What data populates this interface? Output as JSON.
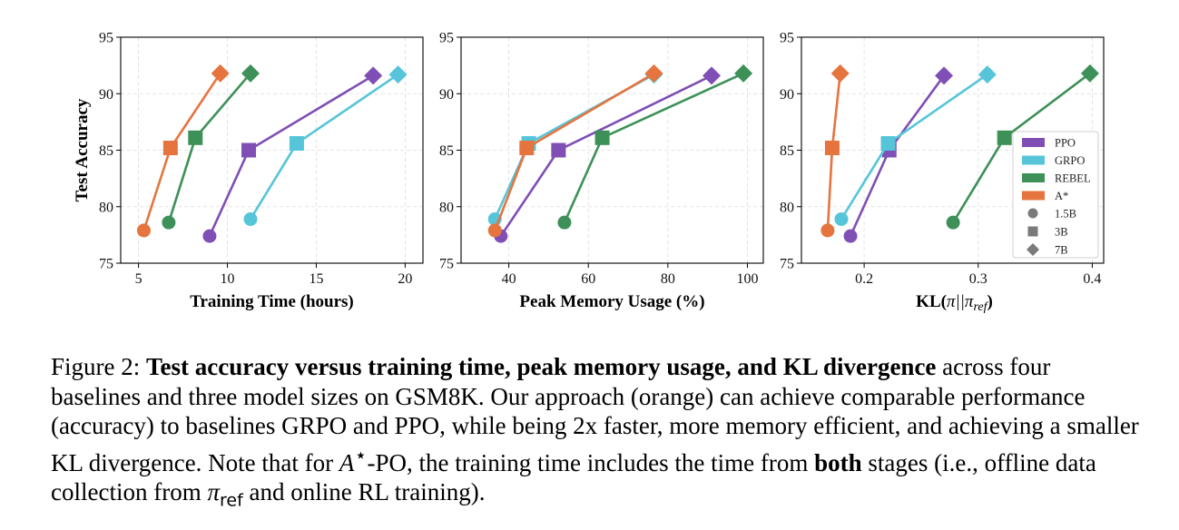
{
  "chart_data": [
    {
      "type": "line",
      "xlabel": "Training Time (hours)",
      "ylabel": "Test Accuracy",
      "xlim": [
        4,
        21
      ],
      "ylim": [
        75,
        95
      ],
      "xticks": [
        "5",
        "10",
        "15",
        "20"
      ],
      "xtick_values": [
        5,
        10,
        15,
        20
      ],
      "yticks": [
        "75",
        "80",
        "85",
        "90",
        "95"
      ],
      "ytick_values": [
        75,
        80,
        85,
        90,
        95
      ],
      "grid": true,
      "series": [
        {
          "name": "PPO",
          "color": "#7f4fb5",
          "x": [
            9.0,
            11.2,
            18.2
          ],
          "y": [
            77.4,
            85.0,
            91.6
          ]
        },
        {
          "name": "GRPO",
          "color": "#56c5d9",
          "x": [
            11.3,
            13.9,
            19.6
          ],
          "y": [
            78.9,
            85.6,
            91.7
          ]
        },
        {
          "name": "REBEL",
          "color": "#3d9158",
          "x": [
            6.7,
            8.2,
            11.3
          ],
          "y": [
            78.6,
            86.1,
            91.8
          ]
        },
        {
          "name": "A*",
          "color": "#e5743e",
          "x": [
            5.3,
            6.8,
            9.6
          ],
          "y": [
            77.9,
            85.2,
            91.8
          ]
        }
      ]
    },
    {
      "type": "line",
      "xlabel": "Peak Memory Usage (%)",
      "ylabel": "",
      "xlim": [
        28,
        104
      ],
      "ylim": [
        75,
        95
      ],
      "xticks": [
        "40",
        "60",
        "80",
        "100"
      ],
      "xtick_values": [
        40,
        60,
        80,
        100
      ],
      "yticks": [
        "75",
        "80",
        "85",
        "90",
        "95"
      ],
      "ytick_values": [
        75,
        80,
        85,
        90,
        95
      ],
      "grid": true,
      "series": [
        {
          "name": "PPO",
          "color": "#7f4fb5",
          "x": [
            38,
            52.5,
            91
          ],
          "y": [
            77.4,
            85.0,
            91.6
          ]
        },
        {
          "name": "GRPO",
          "color": "#56c5d9",
          "x": [
            36.5,
            45,
            76.5
          ],
          "y": [
            78.9,
            85.6,
            91.7
          ]
        },
        {
          "name": "REBEL",
          "color": "#3d9158",
          "x": [
            54,
            63.5,
            99
          ],
          "y": [
            78.6,
            86.1,
            91.8
          ]
        },
        {
          "name": "A*",
          "color": "#e5743e",
          "x": [
            36.5,
            44.5,
            76.5
          ],
          "y": [
            77.9,
            85.2,
            91.8
          ]
        }
      ]
    },
    {
      "type": "line",
      "xlabel_prefix": "KL(",
      "xlabel_math": "π||π",
      "xlabel_sub": "ref",
      "xlabel_suffix": ")",
      "ylabel": "",
      "xlim": [
        0.145,
        0.41
      ],
      "ylim": [
        75,
        95
      ],
      "xticks": [
        "0.2",
        "0.3",
        "0.4"
      ],
      "xtick_values": [
        0.2,
        0.3,
        0.4
      ],
      "yticks": [
        "75",
        "80",
        "85",
        "90",
        "95"
      ],
      "ytick_values": [
        75,
        80,
        85,
        90,
        95
      ],
      "grid": true,
      "series": [
        {
          "name": "PPO",
          "color": "#7f4fb5",
          "x": [
            0.188,
            0.222,
            0.27
          ],
          "y": [
            77.4,
            85.0,
            91.6
          ]
        },
        {
          "name": "GRPO",
          "color": "#56c5d9",
          "x": [
            0.18,
            0.221,
            0.308
          ],
          "y": [
            78.9,
            85.6,
            91.7
          ]
        },
        {
          "name": "REBEL",
          "color": "#3d9158",
          "x": [
            0.278,
            0.323,
            0.398
          ],
          "y": [
            78.6,
            86.1,
            91.8
          ]
        },
        {
          "name": "A*",
          "color": "#e5743e",
          "x": [
            0.168,
            0.172,
            0.179
          ],
          "y": [
            77.9,
            85.2,
            91.8
          ]
        }
      ],
      "legend": {
        "placement": "lower-right",
        "methods": [
          {
            "label": "PPO",
            "color": "#7f4fb5"
          },
          {
            "label": "GRPO",
            "color": "#56c5d9"
          },
          {
            "label": "REBEL",
            "color": "#3d9158"
          },
          {
            "label": "A*",
            "color": "#e5743e"
          }
        ],
        "sizes": [
          {
            "label": "1.5B",
            "marker": "circle"
          },
          {
            "label": "3B",
            "marker": "square"
          },
          {
            "label": "7B",
            "marker": "diamond"
          }
        ]
      }
    }
  ],
  "markers_by_size": [
    "circle",
    "square",
    "diamond"
  ],
  "caption": {
    "prefix": "Figure 2: ",
    "bold_title": "Test accuracy versus training time, peak memory usage, and KL divergence",
    "part1": " across four baselines and three model sizes on GSM8K. Our approach (orange) can achieve comparable performance (accuracy) to baselines GRPO and PPO, while being 2x faster, more memory efficient, and achieving a smaller KL divergence. Note that for ",
    "math_a": "A",
    "math_star": "⋆",
    "part2": "-PO, the training time includes the time from ",
    "bold_both": "both",
    "part3": " stages (i.e., offline data collection from ",
    "math_pi": "π",
    "math_ref": "ref",
    "part4": " and online RL training)."
  }
}
